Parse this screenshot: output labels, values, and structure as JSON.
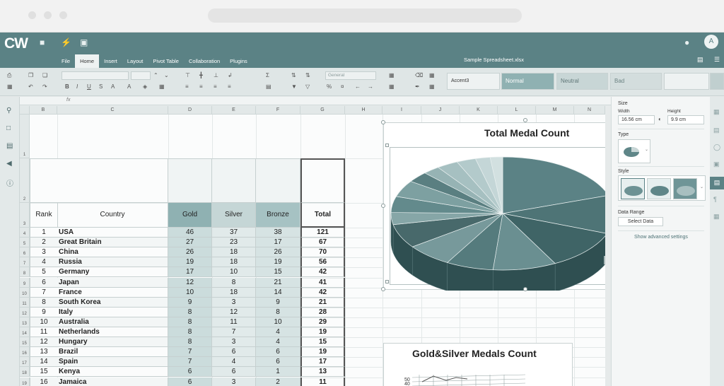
{
  "app": {
    "logo": "CW",
    "avatar": "A",
    "file_name": "Sample Spreadsheet.xlsx"
  },
  "tabs": [
    "File",
    "Home",
    "Insert",
    "Layout",
    "Pivot Table",
    "Collaboration",
    "Plugins"
  ],
  "active_tab": "Home",
  "toolbar": {
    "number_format": "General",
    "styles": [
      "Accent3",
      "Normal",
      "Neutral",
      "Bad"
    ]
  },
  "formula_bar": {
    "fx": "fx",
    "value": ""
  },
  "columns": [
    "B",
    "C",
    "D",
    "E",
    "F",
    "G",
    "H",
    "I",
    "J",
    "K",
    "L",
    "M",
    "N"
  ],
  "table": {
    "headers": [
      "Rank",
      "Country",
      "Gold",
      "Silver",
      "Bronze",
      "Total"
    ],
    "rows": [
      [
        "1",
        "USA",
        "46",
        "37",
        "38",
        "121"
      ],
      [
        "2",
        "Great Britain",
        "27",
        "23",
        "17",
        "67"
      ],
      [
        "3",
        "China",
        "26",
        "18",
        "26",
        "70"
      ],
      [
        "4",
        "Russia",
        "19",
        "18",
        "19",
        "56"
      ],
      [
        "5",
        "Germany",
        "17",
        "10",
        "15",
        "42"
      ],
      [
        "6",
        "Japan",
        "12",
        "8",
        "21",
        "41"
      ],
      [
        "7",
        "France",
        "10",
        "18",
        "14",
        "42"
      ],
      [
        "8",
        "South Korea",
        "9",
        "3",
        "9",
        "21"
      ],
      [
        "9",
        "Italy",
        "8",
        "12",
        "8",
        "28"
      ],
      [
        "10",
        "Australia",
        "8",
        "11",
        "10",
        "29"
      ],
      [
        "11",
        "Netherlands",
        "8",
        "7",
        "4",
        "19"
      ],
      [
        "12",
        "Hungary",
        "8",
        "3",
        "4",
        "15"
      ],
      [
        "13",
        "Brazil",
        "7",
        "6",
        "6",
        "19"
      ],
      [
        "14",
        "Spain",
        "7",
        "4",
        "6",
        "17"
      ],
      [
        "15",
        "Kenya",
        "6",
        "6",
        "1",
        "13"
      ],
      [
        "16",
        "Jamaica",
        "6",
        "3",
        "2",
        "11"
      ]
    ]
  },
  "right_panel": {
    "size_label": "Size",
    "width_label": "Width",
    "width_value": "16.56 cm",
    "height_label": "Height",
    "height_value": "9.9 cm",
    "type_label": "Type",
    "style_label": "Style",
    "data_range_label": "Data Range",
    "select_data_button": "Select Data",
    "advanced_link": "Show advanced settings"
  },
  "chart_data": [
    {
      "type": "pie",
      "title": "Total Medal Count",
      "categories": [
        "USA",
        "Great Britain",
        "China",
        "Russia",
        "Germany",
        "Japan",
        "France",
        "South Korea",
        "Italy",
        "Australia",
        "Netherlands",
        "Hungary",
        "Brazil",
        "Spain",
        "Kenya",
        "Jamaica"
      ],
      "values": [
        121,
        67,
        70,
        56,
        42,
        41,
        42,
        21,
        28,
        29,
        19,
        15,
        19,
        17,
        13,
        11
      ]
    },
    {
      "type": "line",
      "title": "Gold&Silver Medals Count",
      "y_ticks": [
        "50",
        "40"
      ]
    }
  ],
  "colors": {
    "accent": "#5b8285",
    "highlight": "#8fb1b2"
  }
}
